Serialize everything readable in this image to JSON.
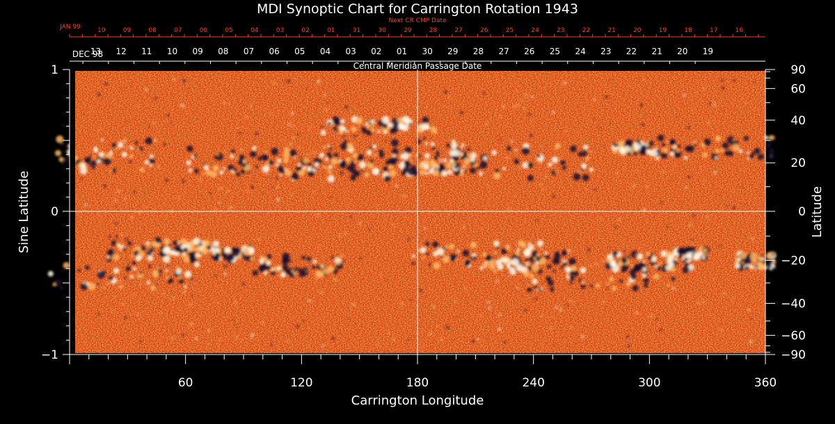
{
  "chart_data": {
    "type": "heatmap",
    "title": "MDI Synoptic Chart for Carrington Rotation 1943",
    "xlabel": "Carrington Longitude",
    "ylabel_left": "Sine Latitude",
    "ylabel_right": "Latitude",
    "xlim": [
      0,
      360
    ],
    "ylim": [
      -1,
      1
    ],
    "x_ticks": [
      60,
      120,
      180,
      240,
      300,
      360
    ],
    "left_y_ticks": [
      {
        "value": -1,
        "label": "−1"
      },
      {
        "value": 0,
        "label": "0"
      },
      {
        "value": 1,
        "label": "1"
      }
    ],
    "right_lat_ticks": [
      {
        "deg": 90,
        "label": "90"
      },
      {
        "deg": 60,
        "label": "60"
      },
      {
        "deg": 40,
        "label": "40"
      },
      {
        "deg": 20,
        "label": "20"
      },
      {
        "deg": 0,
        "label": "0"
      },
      {
        "deg": -20,
        "label": "−20"
      },
      {
        "deg": -40,
        "label": "−40"
      },
      {
        "deg": -60,
        "label": "−60"
      },
      {
        "deg": -90,
        "label": "−90"
      }
    ],
    "crosshair": {
      "x": 180,
      "y": 0
    },
    "colormap": [
      "#140a30",
      "#d63a00",
      "#ff6a1c",
      "#ffb860",
      "#fff8e8"
    ],
    "central_meridian_axis": {
      "label": "Central Meridian Passage Date",
      "month_start_label": "DEC 98",
      "dates": [
        "13",
        "12",
        "11",
        "10",
        "09",
        "08",
        "07",
        "06",
        "05",
        "04",
        "03",
        "02",
        "01",
        "30",
        "29",
        "28",
        "27",
        "26",
        "25",
        "24",
        "23",
        "22",
        "21",
        "20",
        "19"
      ]
    },
    "next_cr_axis": {
      "label": "Next CR CMP Date",
      "month_start_label": "JAN 99",
      "dates": [
        "10",
        "09",
        "08",
        "07",
        "06",
        "05",
        "04",
        "03",
        "02",
        "01",
        "31",
        "30",
        "29",
        "28",
        "27",
        "26",
        "25",
        "24",
        "23",
        "22",
        "21",
        "20",
        "19",
        "18",
        "17",
        "16"
      ]
    }
  }
}
